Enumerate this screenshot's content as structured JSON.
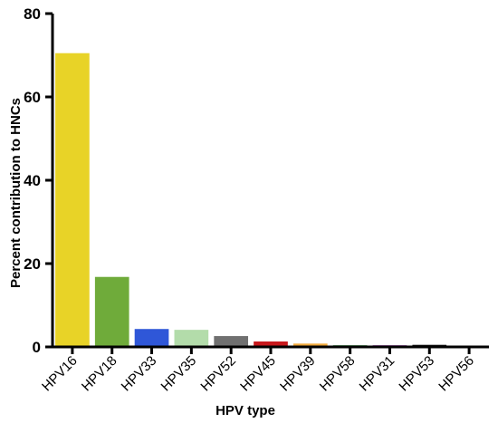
{
  "chart_data": {
    "type": "bar",
    "title": "",
    "xlabel": "HPV type",
    "ylabel": "Percent contribution to HNCs",
    "ylim": [
      0,
      80
    ],
    "yticks": [
      0,
      20,
      40,
      60,
      80
    ],
    "grid": false,
    "categories": [
      "HPV16",
      "HPV18",
      "HPV33",
      "HPV35",
      "HPV52",
      "HPV45",
      "HPV39",
      "HPV58",
      "HPV31",
      "HPV53",
      "HPV56"
    ],
    "values": [
      70.5,
      16.8,
      4.3,
      4.1,
      2.6,
      1.3,
      0.8,
      0.4,
      0.4,
      0.5,
      0.2
    ],
    "colors": [
      "#e8d327",
      "#6fab3a",
      "#2f57d8",
      "#b3dcaa",
      "#707070",
      "#c8181c",
      "#f0a83a",
      "#2f8f3a",
      "#8a2f9a",
      "#101010",
      "#a0a0a0"
    ]
  }
}
